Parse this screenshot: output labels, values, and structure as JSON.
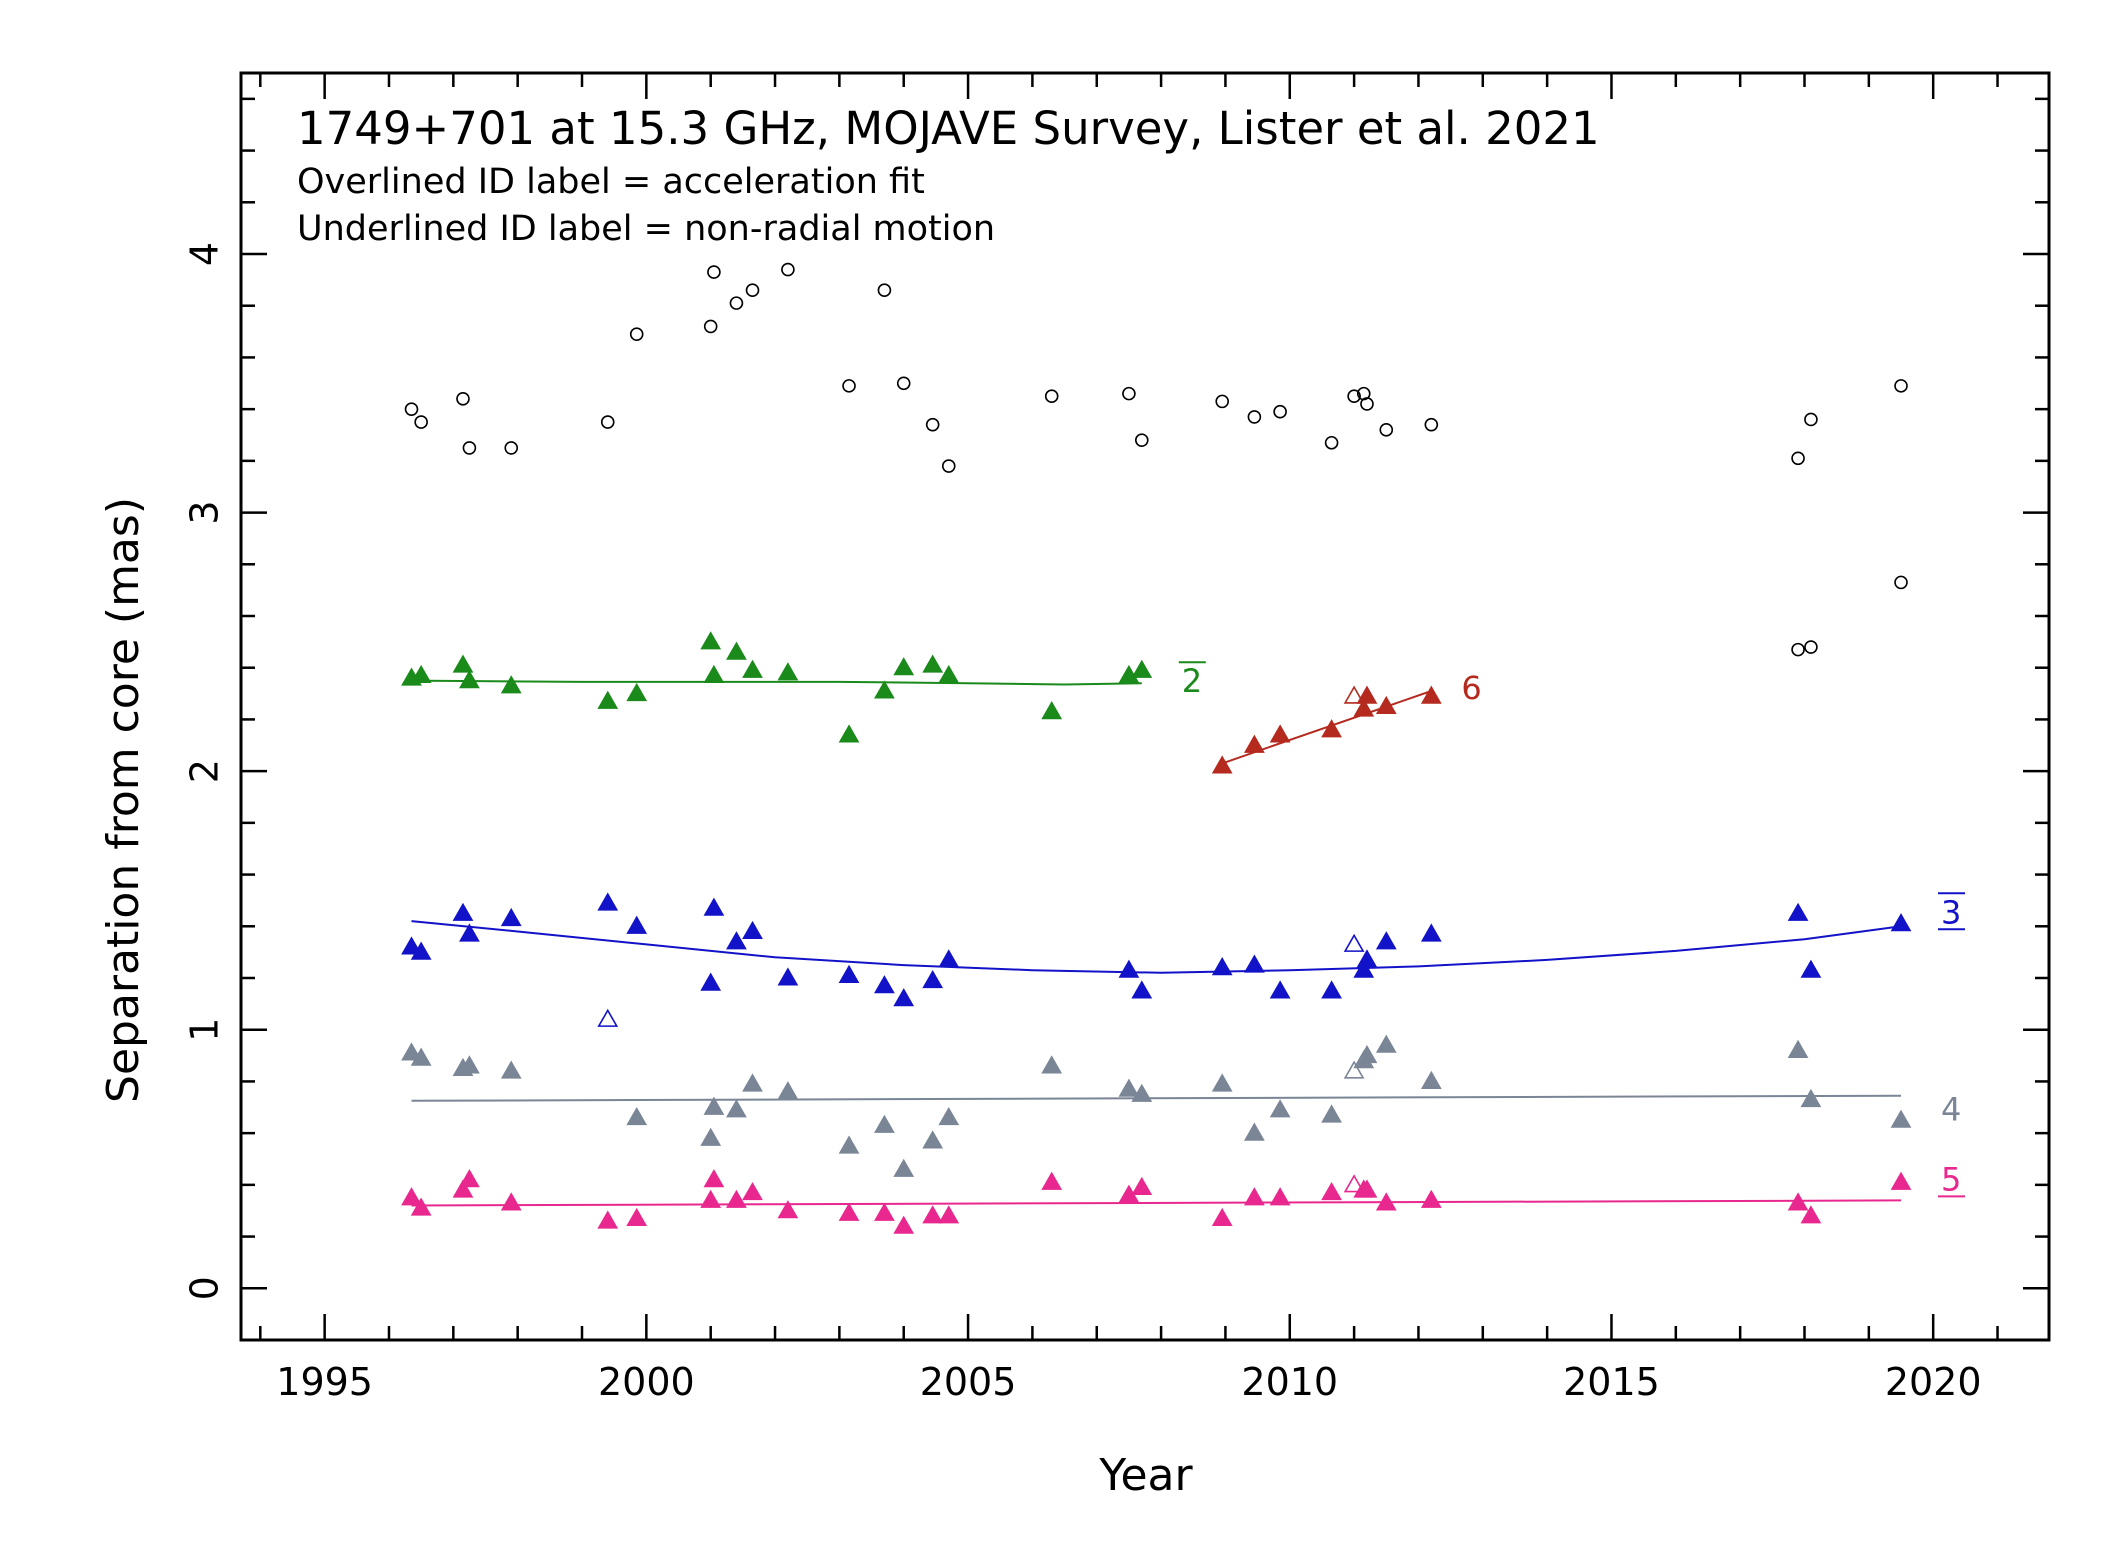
{
  "chart_data": {
    "type": "scatter",
    "title": "1749+701 at 15.3 GHz, MOJAVE Survey, Lister et al. 2021",
    "annotations": [
      "Overlined ID label = acceleration fit",
      "Underlined ID label = non-radial motion"
    ],
    "xlabel": "Year",
    "ylabel": "Separation from core (mas)",
    "xlim": [
      1993.7,
      2021.8
    ],
    "ylim": [
      -0.2,
      4.7
    ],
    "x_ticks": [
      1995,
      2000,
      2005,
      2010,
      2015,
      2020
    ],
    "y_ticks": [
      0,
      1,
      2,
      3,
      4
    ],
    "grid": false,
    "series": [
      {
        "label": "",
        "color": "#000000",
        "marker": "open-circle",
        "points": [
          [
            1996.35,
            3.4
          ],
          [
            1996.5,
            3.35
          ],
          [
            1997.15,
            3.44
          ],
          [
            1997.25,
            3.25
          ],
          [
            1997.9,
            3.25
          ],
          [
            1999.4,
            3.35
          ],
          [
            1999.85,
            3.69
          ],
          [
            2001.0,
            3.72
          ],
          [
            2001.05,
            3.93
          ],
          [
            2001.4,
            3.81
          ],
          [
            2001.65,
            3.86
          ],
          [
            2002.2,
            3.94
          ],
          [
            2003.15,
            3.49
          ],
          [
            2003.7,
            3.86
          ],
          [
            2004.0,
            3.5
          ],
          [
            2004.45,
            3.34
          ],
          [
            2004.7,
            3.18
          ],
          [
            2006.3,
            3.45
          ],
          [
            2007.5,
            3.46
          ],
          [
            2007.7,
            3.28
          ],
          [
            2008.95,
            3.43
          ],
          [
            2009.45,
            3.37
          ],
          [
            2009.85,
            3.39
          ],
          [
            2010.65,
            3.27
          ],
          [
            2011.0,
            3.45
          ],
          [
            2011.15,
            3.46
          ],
          [
            2011.2,
            3.42
          ],
          [
            2011.5,
            3.32
          ],
          [
            2012.2,
            3.34
          ],
          [
            2017.9,
            3.21
          ],
          [
            2017.9,
            2.47
          ],
          [
            2018.1,
            3.36
          ],
          [
            2018.1,
            2.48
          ],
          [
            2019.5,
            3.49
          ],
          [
            2019.5,
            2.73
          ]
        ]
      },
      {
        "label": "2",
        "label_style": "overline",
        "color": "#1a8a1a",
        "marker": "filled-triangle",
        "points": [
          [
            1996.35,
            2.36
          ],
          [
            1996.5,
            2.37
          ],
          [
            1997.15,
            2.41
          ],
          [
            1997.25,
            2.35
          ],
          [
            1997.9,
            2.33
          ],
          [
            1999.4,
            2.27
          ],
          [
            1999.85,
            2.3
          ],
          [
            2001.0,
            2.5
          ],
          [
            2001.05,
            2.37
          ],
          [
            2001.4,
            2.46
          ],
          [
            2001.65,
            2.39
          ],
          [
            2002.2,
            2.38
          ],
          [
            2003.15,
            2.14
          ],
          [
            2003.7,
            2.31
          ],
          [
            2004.0,
            2.4
          ],
          [
            2004.45,
            2.41
          ],
          [
            2004.7,
            2.37
          ],
          [
            2006.3,
            2.23
          ],
          [
            2007.5,
            2.37
          ],
          [
            2007.7,
            2.39
          ]
        ],
        "fit": {
          "x": [
            1996.35,
            1999.0,
            2001.0,
            2003.0,
            2005.0,
            2006.5,
            2007.7
          ],
          "y": [
            2.35,
            2.345,
            2.345,
            2.345,
            2.34,
            2.335,
            2.34
          ]
        }
      },
      {
        "label": "6",
        "color": "#b52a1f",
        "marker": "filled-triangle",
        "points": [
          [
            2008.95,
            2.02
          ],
          [
            2009.45,
            2.1
          ],
          [
            2009.85,
            2.14
          ],
          [
            2010.65,
            2.16
          ],
          [
            2011.15,
            2.24
          ],
          [
            2011.2,
            2.29
          ],
          [
            2011.5,
            2.25
          ],
          [
            2012.2,
            2.29
          ]
        ],
        "open_points": [
          [
            2011.0,
            2.29
          ]
        ],
        "fit": {
          "x": [
            2008.95,
            2012.2
          ],
          "y": [
            2.03,
            2.31
          ]
        }
      },
      {
        "label": "3",
        "label_style": "overline-underline",
        "color": "#1212c8",
        "marker": "filled-triangle",
        "points": [
          [
            1996.35,
            1.32
          ],
          [
            1996.5,
            1.3
          ],
          [
            1997.15,
            1.45
          ],
          [
            1997.25,
            1.37
          ],
          [
            1997.9,
            1.43
          ],
          [
            1999.4,
            1.49
          ],
          [
            1999.85,
            1.4
          ],
          [
            2001.0,
            1.18
          ],
          [
            2001.05,
            1.47
          ],
          [
            2001.4,
            1.34
          ],
          [
            2001.65,
            1.38
          ],
          [
            2002.2,
            1.2
          ],
          [
            2003.15,
            1.21
          ],
          [
            2003.7,
            1.17
          ],
          [
            2004.0,
            1.12
          ],
          [
            2004.45,
            1.19
          ],
          [
            2004.7,
            1.27
          ],
          [
            2007.5,
            1.23
          ],
          [
            2007.7,
            1.15
          ],
          [
            2008.95,
            1.24
          ],
          [
            2009.45,
            1.25
          ],
          [
            2009.85,
            1.15
          ],
          [
            2010.65,
            1.15
          ],
          [
            2011.15,
            1.23
          ],
          [
            2011.2,
            1.27
          ],
          [
            2011.5,
            1.34
          ],
          [
            2012.2,
            1.37
          ],
          [
            2017.9,
            1.45
          ],
          [
            2018.1,
            1.23
          ],
          [
            2019.5,
            1.41
          ]
        ],
        "open_points": [
          [
            1999.4,
            1.04
          ],
          [
            2011.0,
            1.33
          ]
        ],
        "fit": {
          "x": [
            1996.35,
            1998.0,
            2000.0,
            2002.0,
            2004.0,
            2006.0,
            2008.0,
            2010.0,
            2012.0,
            2014.0,
            2016.0,
            2018.0,
            2019.5
          ],
          "y": [
            1.42,
            1.38,
            1.33,
            1.28,
            1.25,
            1.23,
            1.22,
            1.23,
            1.245,
            1.27,
            1.305,
            1.35,
            1.4
          ]
        }
      },
      {
        "label": "4",
        "color": "#7a8596",
        "marker": "filled-triangle",
        "points": [
          [
            1996.35,
            0.91
          ],
          [
            1996.5,
            0.89
          ],
          [
            1997.15,
            0.85
          ],
          [
            1997.25,
            0.86
          ],
          [
            1997.9,
            0.84
          ],
          [
            1999.85,
            0.66
          ],
          [
            2001.0,
            0.58
          ],
          [
            2001.05,
            0.7
          ],
          [
            2001.4,
            0.69
          ],
          [
            2001.65,
            0.79
          ],
          [
            2002.2,
            0.76
          ],
          [
            2003.15,
            0.55
          ],
          [
            2003.7,
            0.63
          ],
          [
            2004.0,
            0.46
          ],
          [
            2004.45,
            0.57
          ],
          [
            2004.7,
            0.66
          ],
          [
            2006.3,
            0.86
          ],
          [
            2007.5,
            0.77
          ],
          [
            2007.7,
            0.75
          ],
          [
            2008.95,
            0.79
          ],
          [
            2009.45,
            0.6
          ],
          [
            2009.85,
            0.69
          ],
          [
            2010.65,
            0.67
          ],
          [
            2011.15,
            0.88
          ],
          [
            2011.2,
            0.9
          ],
          [
            2011.5,
            0.94
          ],
          [
            2012.2,
            0.8
          ],
          [
            2017.9,
            0.92
          ],
          [
            2018.1,
            0.73
          ],
          [
            2019.5,
            0.65
          ]
        ],
        "open_points": [
          [
            2011.0,
            0.84
          ]
        ],
        "fit": {
          "x": [
            1996.35,
            2019.5
          ],
          "y": [
            0.725,
            0.745
          ]
        }
      },
      {
        "label": "5",
        "label_style": "underline",
        "color": "#e8288e",
        "marker": "filled-triangle",
        "points": [
          [
            1996.35,
            0.35
          ],
          [
            1996.5,
            0.31
          ],
          [
            1997.15,
            0.38
          ],
          [
            1997.25,
            0.42
          ],
          [
            1997.9,
            0.33
          ],
          [
            1999.4,
            0.26
          ],
          [
            1999.85,
            0.27
          ],
          [
            2001.0,
            0.34
          ],
          [
            2001.05,
            0.42
          ],
          [
            2001.4,
            0.34
          ],
          [
            2001.65,
            0.37
          ],
          [
            2002.2,
            0.3
          ],
          [
            2003.15,
            0.29
          ],
          [
            2003.7,
            0.29
          ],
          [
            2004.0,
            0.24
          ],
          [
            2004.45,
            0.28
          ],
          [
            2004.7,
            0.28
          ],
          [
            2006.3,
            0.41
          ],
          [
            2007.5,
            0.36
          ],
          [
            2007.7,
            0.39
          ],
          [
            2008.95,
            0.27
          ],
          [
            2009.45,
            0.35
          ],
          [
            2009.85,
            0.35
          ],
          [
            2010.65,
            0.37
          ],
          [
            2011.15,
            0.38
          ],
          [
            2011.2,
            0.38
          ],
          [
            2011.5,
            0.33
          ],
          [
            2012.2,
            0.34
          ],
          [
            2017.9,
            0.33
          ],
          [
            2018.1,
            0.28
          ],
          [
            2019.5,
            0.41
          ]
        ],
        "open_points": [
          [
            2011.0,
            0.4
          ]
        ],
        "fit": {
          "x": [
            1996.35,
            2019.5
          ],
          "y": [
            0.32,
            0.34
          ]
        }
      }
    ]
  }
}
